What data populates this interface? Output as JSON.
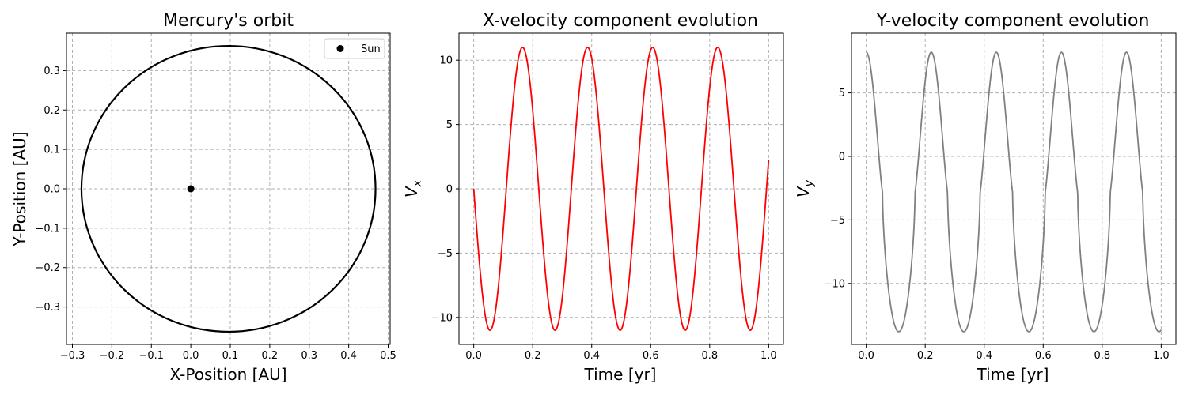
{
  "chart_data": [
    {
      "type": "line",
      "id": "orbit",
      "title": "Mercury's orbit",
      "xlabel": "X-Position [AU]",
      "ylabel": "Y-Position [AU]",
      "xlim": [
        -0.315,
        0.505
      ],
      "ylim": [
        -0.395,
        0.395
      ],
      "xticks": [
        -0.3,
        -0.2,
        -0.1,
        0.0,
        0.1,
        0.2,
        0.3,
        0.4,
        0.5
      ],
      "xtick_labels": [
        "−0.3",
        "−0.2",
        "−0.1",
        "0.0",
        "0.1",
        "0.2",
        "0.3",
        "0.4",
        "0.5"
      ],
      "yticks": [
        -0.3,
        -0.2,
        -0.1,
        0.0,
        0.1,
        0.2,
        0.3
      ],
      "ytick_labels": [
        "−0.3",
        "−0.2",
        "−0.1",
        "0.0",
        "0.1",
        "0.2",
        "0.3"
      ],
      "grid": true,
      "legend_position": "top-right",
      "series": [
        {
          "kind": "ellipse",
          "center": [
            0.0955,
            0.0
          ],
          "semi_axes": [
            0.3725,
            0.3628
          ],
          "color": "#000000"
        },
        {
          "kind": "scatter",
          "name": "Sun",
          "x": [
            0.0
          ],
          "y": [
            0.0
          ],
          "color": "#000000"
        }
      ]
    },
    {
      "type": "line",
      "id": "vx",
      "title": "X-velocity component evolution",
      "xlabel": "Time [yr]",
      "ylabel": "V",
      "ylabel_sub": "x",
      "xlim": [
        -0.05,
        1.05
      ],
      "ylim": [
        -12.1,
        12.1
      ],
      "xticks": [
        0.0,
        0.2,
        0.4,
        0.6,
        0.8,
        1.0
      ],
      "xtick_labels": [
        "0.0",
        "0.2",
        "0.4",
        "0.6",
        "0.8",
        "1.0"
      ],
      "yticks": [
        -10,
        -5,
        0,
        5,
        10
      ],
      "ytick_labels": [
        "−10",
        "−5",
        "0",
        "5",
        "10"
      ],
      "grid": true,
      "series": [
        {
          "kind": "sine",
          "amplitude": 11.0,
          "period": 0.2206,
          "phase": "negative-sine",
          "t_range": [
            0,
            1
          ],
          "color": "#ff0000"
        }
      ]
    },
    {
      "type": "line",
      "id": "vy",
      "title": "Y-velocity component evolution",
      "xlabel": "Time [yr]",
      "ylabel": "V",
      "ylabel_sub": "y",
      "xlim": [
        -0.05,
        1.05
      ],
      "ylim": [
        -14.8,
        9.7
      ],
      "xticks": [
        0.0,
        0.2,
        0.4,
        0.6,
        0.8,
        1.0
      ],
      "xtick_labels": [
        "0.0",
        "0.2",
        "0.4",
        "0.6",
        "0.8",
        "1.0"
      ],
      "yticks": [
        -10,
        -5,
        0,
        5
      ],
      "ytick_labels": [
        "−10",
        "−5",
        "0",
        "5"
      ],
      "grid": true,
      "series": [
        {
          "kind": "periodic",
          "max": 8.2,
          "min": -13.8,
          "period": 0.2206,
          "sharpness": 0.8,
          "t_range": [
            0,
            1
          ],
          "color": "#808080"
        }
      ]
    }
  ]
}
